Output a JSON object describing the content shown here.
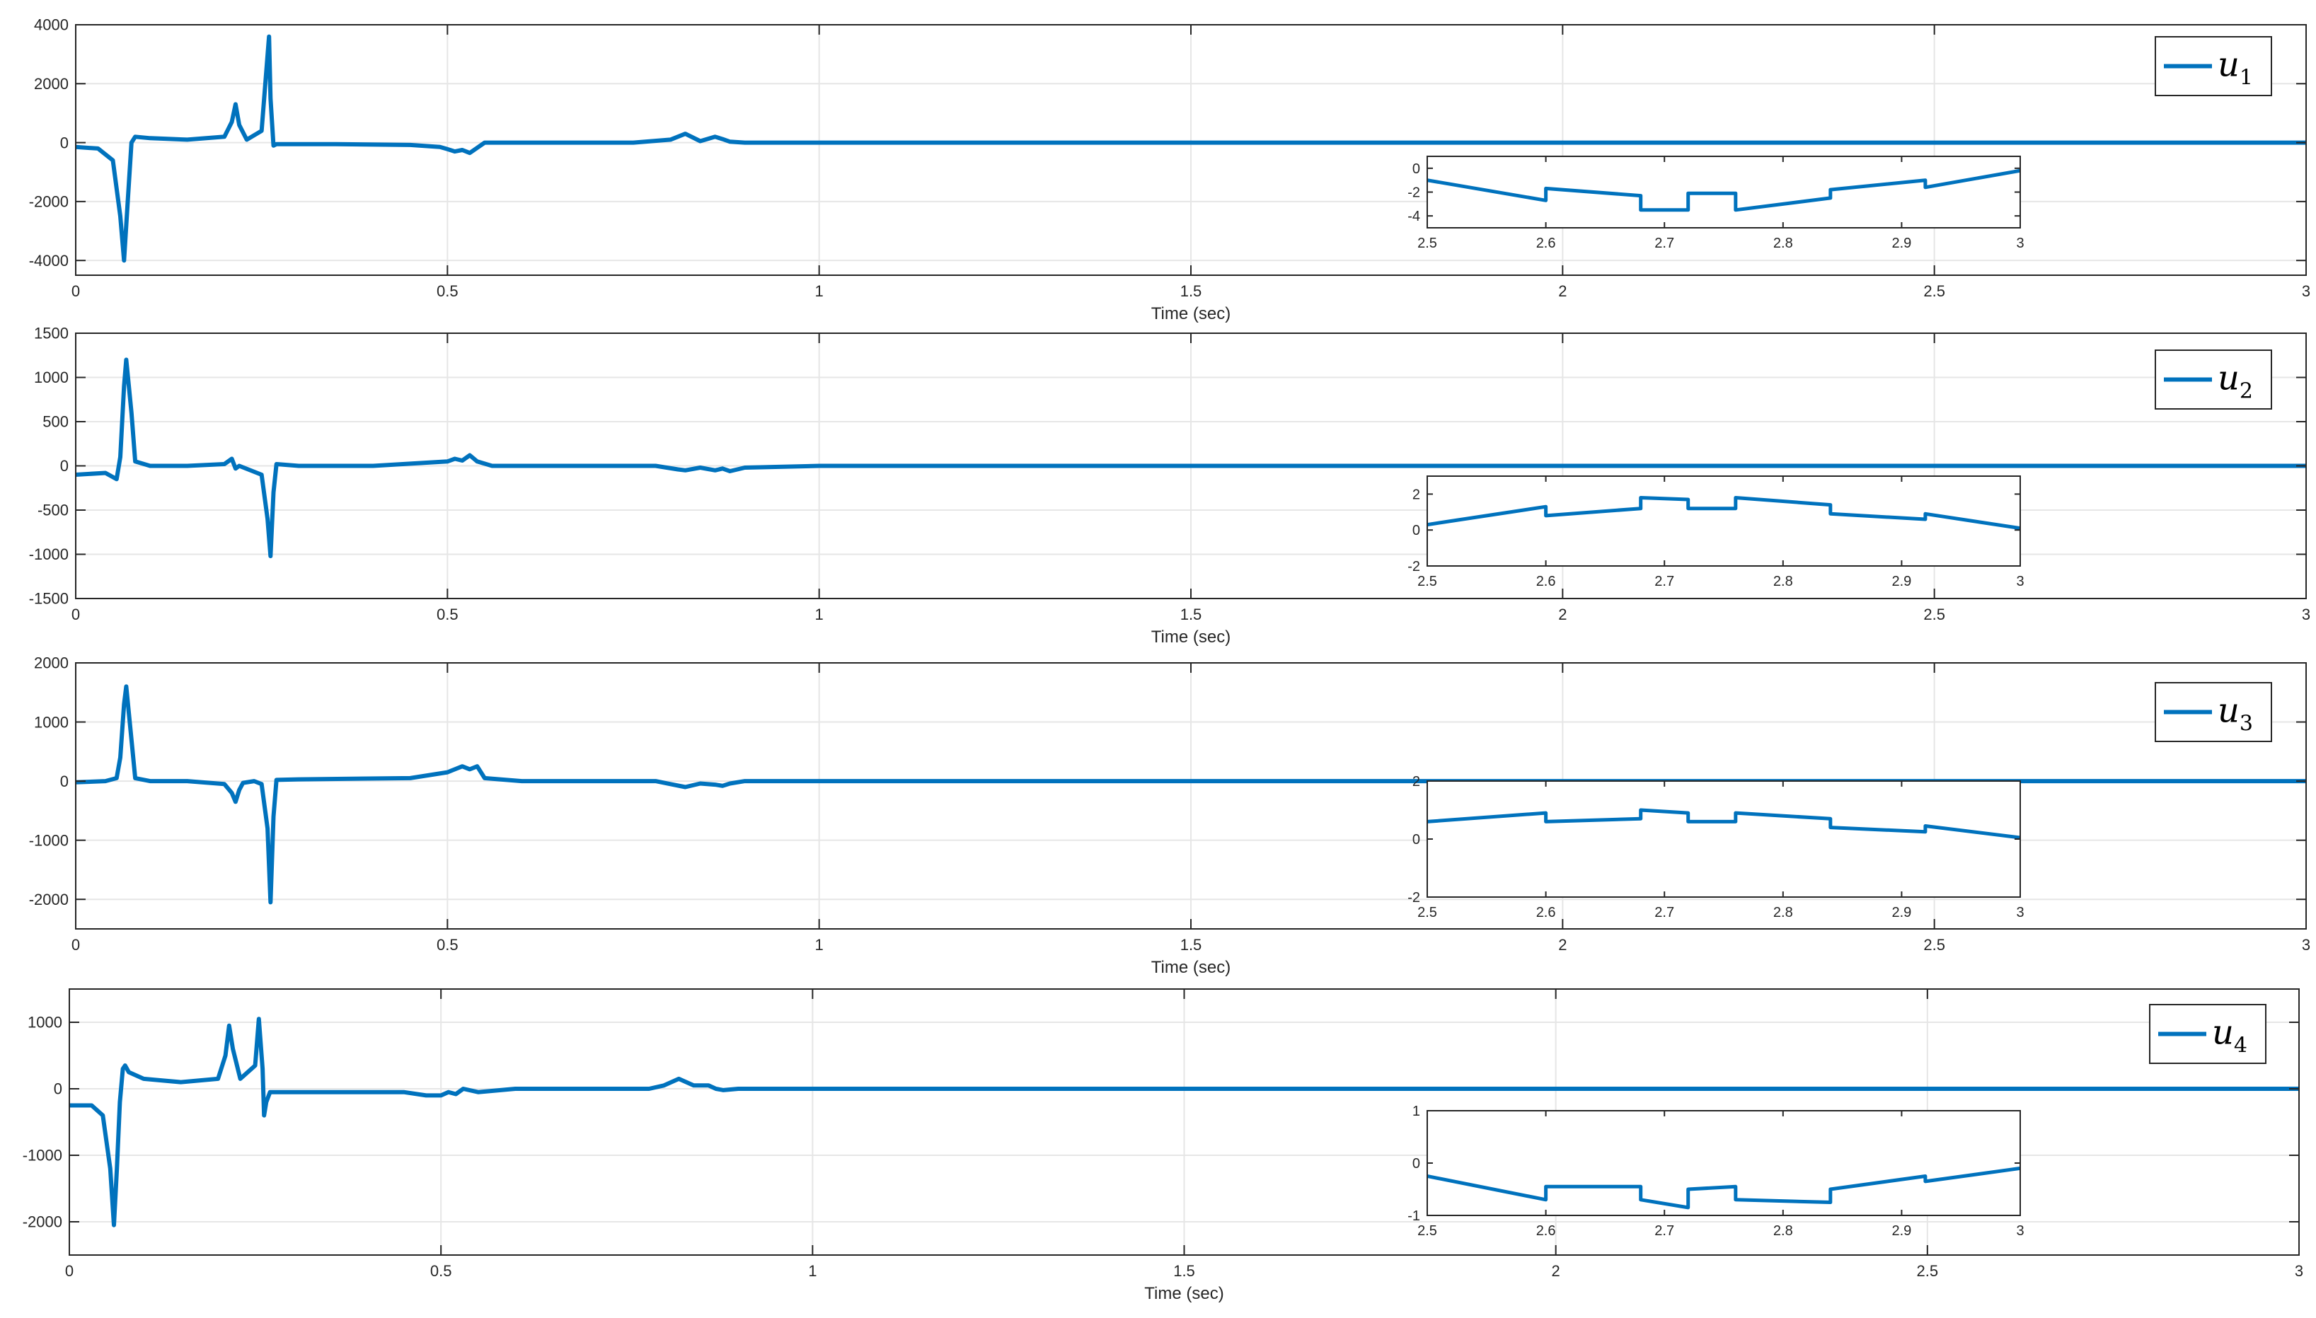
{
  "colors": {
    "line": "#0072BD",
    "axis": "#262626",
    "grid": "#e6e6e6",
    "box": "#bdbdbd"
  },
  "chart_data": [
    {
      "type": "line",
      "legend": "u1",
      "legend_sub": "1",
      "xlabel": "Time (sec)",
      "xlim": [
        0,
        3
      ],
      "ylim": [
        -4500,
        4000
      ],
      "xticks": [
        "0",
        "0.5",
        "1",
        "1.5",
        "2",
        "2.5",
        "3"
      ],
      "yticks": [
        "-4000",
        "-2000",
        "0",
        "2000",
        "4000"
      ],
      "grid": true,
      "legend_position": "top-right",
      "series": [
        {
          "x": [
            0,
            0.03,
            0.05,
            0.06,
            0.065,
            0.07,
            0.075,
            0.08,
            0.1,
            0.15,
            0.2,
            0.21,
            0.215,
            0.22,
            0.23,
            0.25,
            0.26,
            0.262,
            0.266,
            0.27,
            0.28,
            0.35,
            0.45,
            0.49,
            0.5,
            0.51,
            0.52,
            0.53,
            0.55,
            0.6,
            0.75,
            0.8,
            0.82,
            0.84,
            0.86,
            0.87,
            0.88,
            0.9,
            1,
            3
          ],
          "y": [
            -150,
            -200,
            -600,
            -2500,
            -4000,
            -2000,
            0,
            200,
            150,
            100,
            200,
            700,
            1300,
            600,
            100,
            400,
            3600,
            1500,
            -100,
            -50,
            -50,
            -50,
            -80,
            -150,
            -220,
            -300,
            -250,
            -350,
            0,
            0,
            0,
            100,
            300,
            50,
            200,
            120,
            30,
            0,
            0,
            0
          ]
        }
      ],
      "inset": {
        "xlim": [
          2.5,
          3
        ],
        "ylim": [
          -5,
          1
        ],
        "xticks": [
          "2.5",
          "2.6",
          "2.7",
          "2.8",
          "2.9",
          "3"
        ],
        "yticks": [
          "0",
          "-2",
          "-4"
        ],
        "series": [
          {
            "x": [
              2.5,
              2.6,
              2.6,
              2.68,
              2.68,
              2.72,
              2.72,
              2.76,
              2.76,
              2.84,
              2.84,
              2.92,
              2.92,
              3
            ],
            "y": [
              -1.0,
              -2.7,
              -1.7,
              -2.3,
              -3.5,
              -3.5,
              -2.1,
              -2.1,
              -3.5,
              -2.5,
              -1.8,
              -1.0,
              -1.6,
              -0.2
            ]
          }
        ]
      }
    },
    {
      "type": "line",
      "legend": "u2",
      "legend_sub": "2",
      "xlabel": "Time (sec)",
      "xlim": [
        0,
        3
      ],
      "ylim": [
        -1500,
        1500
      ],
      "xticks": [
        "0",
        "0.5",
        "1",
        "1.5",
        "2",
        "2.5",
        "3"
      ],
      "yticks": [
        "-1500",
        "-1000",
        "-500",
        "0",
        "500",
        "1000",
        "1500"
      ],
      "grid": true,
      "legend_position": "top-right",
      "series": [
        {
          "x": [
            0,
            0.04,
            0.055,
            0.06,
            0.065,
            0.068,
            0.075,
            0.08,
            0.1,
            0.15,
            0.2,
            0.21,
            0.215,
            0.22,
            0.25,
            0.258,
            0.262,
            0.266,
            0.27,
            0.3,
            0.4,
            0.5,
            0.51,
            0.52,
            0.53,
            0.54,
            0.56,
            0.6,
            0.78,
            0.81,
            0.82,
            0.84,
            0.86,
            0.87,
            0.88,
            0.9,
            1,
            3
          ],
          "y": [
            -100,
            -80,
            -150,
            100,
            900,
            1200,
            600,
            50,
            0,
            0,
            20,
            80,
            -30,
            0,
            -100,
            -600,
            -1020,
            -300,
            20,
            0,
            0,
            50,
            80,
            60,
            120,
            50,
            0,
            0,
            0,
            -40,
            -50,
            -20,
            -50,
            -30,
            -60,
            -20,
            0,
            0
          ]
        }
      ],
      "inset": {
        "xlim": [
          2.5,
          3
        ],
        "ylim": [
          -2,
          3
        ],
        "xticks": [
          "2.5",
          "2.6",
          "2.7",
          "2.8",
          "2.9",
          "3"
        ],
        "yticks": [
          "2",
          "0",
          "-2"
        ],
        "series": [
          {
            "x": [
              2.5,
              2.6,
              2.6,
              2.68,
              2.68,
              2.72,
              2.72,
              2.76,
              2.76,
              2.84,
              2.84,
              2.92,
              2.92,
              3
            ],
            "y": [
              0.3,
              1.3,
              0.8,
              1.2,
              1.8,
              1.7,
              1.2,
              1.2,
              1.8,
              1.4,
              0.9,
              0.6,
              0.9,
              0.1
            ]
          }
        ]
      }
    },
    {
      "type": "line",
      "legend": "u3",
      "legend_sub": "3",
      "xlabel": "Time (sec)",
      "xlim": [
        0,
        3
      ],
      "ylim": [
        -2500,
        2000
      ],
      "xticks": [
        "0",
        "0.5",
        "1",
        "1.5",
        "2",
        "2.5",
        "3"
      ],
      "yticks": [
        "-2000",
        "-1000",
        "0",
        "1000",
        "2000"
      ],
      "grid": true,
      "legend_position": "top-right",
      "series": [
        {
          "x": [
            0,
            0.04,
            0.055,
            0.06,
            0.065,
            0.068,
            0.075,
            0.08,
            0.1,
            0.15,
            0.2,
            0.21,
            0.215,
            0.22,
            0.225,
            0.24,
            0.25,
            0.258,
            0.262,
            0.266,
            0.27,
            0.3,
            0.45,
            0.5,
            0.51,
            0.52,
            0.53,
            0.54,
            0.55,
            0.6,
            0.78,
            0.8,
            0.82,
            0.84,
            0.86,
            0.87,
            0.88,
            0.9,
            1,
            3
          ],
          "y": [
            -20,
            0,
            50,
            400,
            1300,
            1600,
            700,
            50,
            0,
            0,
            -50,
            -200,
            -350,
            -150,
            -30,
            0,
            -50,
            -800,
            -2050,
            -600,
            20,
            30,
            50,
            150,
            200,
            250,
            200,
            250,
            50,
            0,
            0,
            -50,
            -100,
            -40,
            -60,
            -80,
            -40,
            0,
            0,
            0
          ]
        }
      ],
      "inset": {
        "xlim": [
          2.5,
          3
        ],
        "ylim": [
          -2,
          2
        ],
        "xticks": [
          "2.5",
          "2.6",
          "2.7",
          "2.8",
          "2.9",
          "3"
        ],
        "yticks": [
          "2",
          "0",
          "-2"
        ],
        "series": [
          {
            "x": [
              2.5,
              2.6,
              2.6,
              2.68,
              2.68,
              2.72,
              2.72,
              2.76,
              2.76,
              2.84,
              2.84,
              2.92,
              2.92,
              3
            ],
            "y": [
              0.6,
              0.9,
              0.6,
              0.7,
              1.0,
              0.9,
              0.6,
              0.6,
              0.9,
              0.7,
              0.4,
              0.25,
              0.45,
              0.05
            ]
          }
        ]
      }
    },
    {
      "type": "line",
      "legend": "u4",
      "legend_sub": "4",
      "xlabel": "Time (sec)",
      "xlim": [
        0,
        3
      ],
      "ylim": [
        -2500,
        1500
      ],
      "xticks": [
        "0",
        "0.5",
        "1",
        "1.5",
        "2",
        "2.5",
        "3"
      ],
      "yticks": [
        "-2000",
        "-1000",
        "0",
        "1000"
      ],
      "grid": true,
      "legend_position": "top-right",
      "series": [
        {
          "x": [
            0,
            0.03,
            0.045,
            0.055,
            0.06,
            0.064,
            0.068,
            0.072,
            0.075,
            0.08,
            0.1,
            0.15,
            0.2,
            0.21,
            0.215,
            0.22,
            0.23,
            0.25,
            0.255,
            0.26,
            0.262,
            0.265,
            0.27,
            0.3,
            0.45,
            0.48,
            0.5,
            0.51,
            0.52,
            0.53,
            0.55,
            0.6,
            0.78,
            0.8,
            0.82,
            0.84,
            0.86,
            0.87,
            0.88,
            0.9,
            1,
            3
          ],
          "y": [
            -250,
            -250,
            -400,
            -1200,
            -2050,
            -1200,
            -200,
            300,
            350,
            250,
            150,
            100,
            150,
            500,
            950,
            600,
            150,
            350,
            1050,
            300,
            -400,
            -200,
            -50,
            -50,
            -50,
            -100,
            -100,
            -50,
            -80,
            0,
            -50,
            0,
            0,
            50,
            150,
            50,
            50,
            0,
            -20,
            0,
            0,
            0
          ]
        }
      ],
      "inset": {
        "xlim": [
          2.5,
          3
        ],
        "ylim": [
          -1,
          1
        ],
        "xticks": [
          "2.5",
          "2.6",
          "2.7",
          "2.8",
          "2.9",
          "3"
        ],
        "yticks": [
          "1",
          "0",
          "-1"
        ],
        "series": [
          {
            "x": [
              2.5,
              2.6,
              2.6,
              2.68,
              2.68,
              2.72,
              2.72,
              2.76,
              2.76,
              2.84,
              2.84,
              2.92,
              2.92,
              3
            ],
            "y": [
              -0.25,
              -0.7,
              -0.45,
              -0.45,
              -0.7,
              -0.85,
              -0.5,
              -0.45,
              -0.7,
              -0.75,
              -0.5,
              -0.25,
              -0.35,
              -0.1
            ]
          }
        ]
      }
    }
  ]
}
